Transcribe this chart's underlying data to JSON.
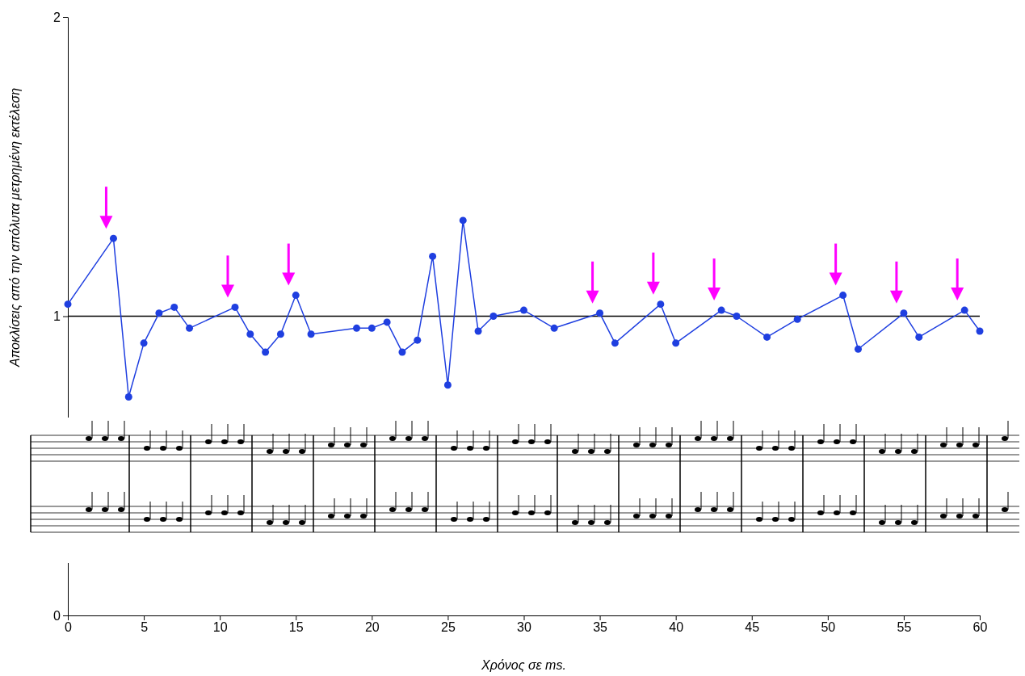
{
  "chart_data": {
    "type": "line",
    "xlabel": "Χρόνος σε ms.",
    "ylabel": "Αποκλίσεις από την απόλυτα μετρημένη εκτέλεση",
    "xlim": [
      0,
      60
    ],
    "xticks": [
      0,
      5,
      10,
      15,
      20,
      25,
      30,
      35,
      40,
      45,
      50,
      55,
      60
    ],
    "ylim": [
      0,
      2
    ],
    "yticks": [
      0,
      1,
      2
    ],
    "grid": false,
    "marker": "circle",
    "line_style": "solid",
    "ref_lines": [
      {
        "axis": "y",
        "value": 1,
        "color": "#000000"
      }
    ],
    "series": [
      {
        "color": "#1f3fe0",
        "x": [
          0,
          3,
          4,
          5,
          6,
          7,
          8,
          11,
          12,
          13,
          14,
          15,
          16,
          19,
          20,
          21,
          22,
          23,
          24,
          25,
          26,
          27,
          28,
          30,
          32,
          35,
          36,
          39,
          40,
          43,
          44,
          46,
          48,
          51,
          52,
          55,
          56,
          59,
          60
        ],
        "values": [
          1.04,
          1.26,
          0.73,
          0.91,
          1.01,
          1.03,
          0.96,
          1.03,
          0.94,
          0.88,
          0.94,
          1.07,
          0.94,
          0.96,
          0.96,
          0.98,
          0.88,
          0.92,
          1.2,
          0.77,
          1.32,
          0.95,
          1.0,
          1.02,
          0.96,
          1.01,
          0.91,
          1.04,
          0.91,
          1.02,
          1.0,
          0.93,
          0.99,
          1.07,
          0.89,
          1.01,
          0.93,
          1.02,
          0.95
        ]
      }
    ]
  }
}
